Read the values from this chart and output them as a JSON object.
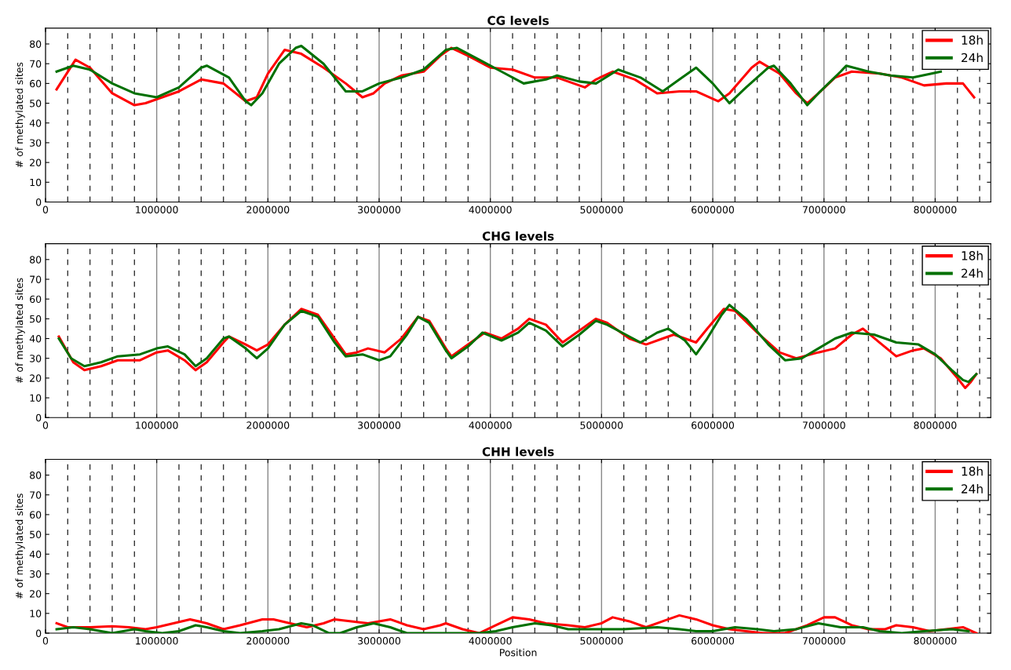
{
  "chart_data": [
    {
      "type": "line",
      "title": "CG levels",
      "ylabel": "# of methylated sites",
      "xlim": [
        0,
        8500000
      ],
      "ylim": [
        0,
        88
      ],
      "xticks": [
        0,
        1000000,
        2000000,
        3000000,
        4000000,
        5000000,
        6000000,
        7000000,
        8000000
      ],
      "yticks": [
        0,
        10,
        20,
        30,
        40,
        50,
        60,
        70,
        80
      ],
      "grid": "x",
      "legend": "top right",
      "line_style": "solid",
      "ref_lines": [
        {
          "axis": "x",
          "value": 200000,
          "line_style": "dashed"
        },
        {
          "axis": "x",
          "value": 400000,
          "line_style": "dashed"
        },
        {
          "axis": "x",
          "value": 600000,
          "line_style": "dashed"
        },
        {
          "axis": "x",
          "value": 800000,
          "line_style": "dashed"
        },
        {
          "axis": "x",
          "value": 1200000,
          "line_style": "dashed"
        },
        {
          "axis": "x",
          "value": 1400000,
          "line_style": "dashed"
        },
        {
          "axis": "x",
          "value": 1600000,
          "line_style": "dashed"
        },
        {
          "axis": "x",
          "value": 1800000,
          "line_style": "dashed"
        },
        {
          "axis": "x",
          "value": 2200000,
          "line_style": "dashed"
        },
        {
          "axis": "x",
          "value": 2400000,
          "line_style": "dashed"
        },
        {
          "axis": "x",
          "value": 2600000,
          "line_style": "dashed"
        },
        {
          "axis": "x",
          "value": 2800000,
          "line_style": "dashed"
        },
        {
          "axis": "x",
          "value": 3200000,
          "line_style": "dashed"
        },
        {
          "axis": "x",
          "value": 3400000,
          "line_style": "dashed"
        },
        {
          "axis": "x",
          "value": 3600000,
          "line_style": "dashed"
        },
        {
          "axis": "x",
          "value": 3800000,
          "line_style": "dashed"
        },
        {
          "axis": "x",
          "value": 4200000,
          "line_style": "dashed"
        },
        {
          "axis": "x",
          "value": 4400000,
          "line_style": "dashed"
        },
        {
          "axis": "x",
          "value": 4600000,
          "line_style": "dashed"
        },
        {
          "axis": "x",
          "value": 4800000,
          "line_style": "dashed"
        },
        {
          "axis": "x",
          "value": 5200000,
          "line_style": "dashed"
        },
        {
          "axis": "x",
          "value": 5400000,
          "line_style": "dashed"
        },
        {
          "axis": "x",
          "value": 5600000,
          "line_style": "dashed"
        },
        {
          "axis": "x",
          "value": 5800000,
          "line_style": "dashed"
        },
        {
          "axis": "x",
          "value": 6200000,
          "line_style": "dashed"
        },
        {
          "axis": "x",
          "value": 6400000,
          "line_style": "dashed"
        },
        {
          "axis": "x",
          "value": 6600000,
          "line_style": "dashed"
        },
        {
          "axis": "x",
          "value": 6800000,
          "line_style": "dashed"
        },
        {
          "axis": "x",
          "value": 7200000,
          "line_style": "dashed"
        },
        {
          "axis": "x",
          "value": 7400000,
          "line_style": "dashed"
        },
        {
          "axis": "x",
          "value": 7600000,
          "line_style": "dashed"
        },
        {
          "axis": "x",
          "value": 7800000,
          "line_style": "dashed"
        },
        {
          "axis": "x",
          "value": 8200000,
          "line_style": "dashed"
        },
        {
          "axis": "x",
          "value": 8400000,
          "line_style": "dashed"
        }
      ],
      "series": [
        {
          "name": "18h",
          "color": "#ff0000",
          "x": [
            100000,
            270000,
            400000,
            600000,
            800000,
            900000,
            1000000,
            1200000,
            1400000,
            1600000,
            1800000,
            1900000,
            2000000,
            2150000,
            2300000,
            2500000,
            2700000,
            2850000,
            2950000,
            3050000,
            3200000,
            3400000,
            3550000,
            3650000,
            3800000,
            4000000,
            4200000,
            4400000,
            4600000,
            4850000,
            4950000,
            5100000,
            5300000,
            5500000,
            5700000,
            5850000,
            6050000,
            6150000,
            6350000,
            6420000,
            6600000,
            6750000,
            6850000,
            6950000,
            7100000,
            7250000,
            7500000,
            7700000,
            7900000,
            8100000,
            8250000,
            8350000
          ],
          "values": [
            57,
            72,
            68,
            55,
            49,
            50,
            52,
            56,
            62,
            60,
            51,
            53,
            65,
            77,
            75,
            68,
            60,
            53,
            55,
            60,
            64,
            66,
            74,
            78,
            74,
            68,
            67,
            63,
            63,
            58,
            62,
            66,
            62,
            55,
            56,
            56,
            51,
            55,
            68,
            71,
            65,
            55,
            50,
            55,
            63,
            66,
            65,
            63,
            59,
            60,
            60,
            53
          ]
        },
        {
          "name": "24h",
          "color": "#007000",
          "x": [
            100000,
            250000,
            400000,
            600000,
            800000,
            1000000,
            1200000,
            1400000,
            1450000,
            1650000,
            1800000,
            1850000,
            1950000,
            2100000,
            2250000,
            2300000,
            2500000,
            2700000,
            2850000,
            3000000,
            3200000,
            3400000,
            3600000,
            3700000,
            3900000,
            4100000,
            4300000,
            4500000,
            4600000,
            4800000,
            4950000,
            5150000,
            5350000,
            5550000,
            5700000,
            5850000,
            6000000,
            6150000,
            6300000,
            6500000,
            6550000,
            6700000,
            6850000,
            6950000,
            7150000,
            7200000,
            7400000,
            7600000,
            7800000,
            8050000
          ],
          "values": [
            66,
            69,
            67,
            60,
            55,
            53,
            58,
            68,
            69,
            63,
            51,
            49,
            55,
            70,
            78,
            79,
            70,
            56,
            56,
            60,
            63,
            67,
            77,
            78,
            72,
            66,
            60,
            62,
            64,
            61,
            60,
            67,
            63,
            56,
            62,
            68,
            60,
            50,
            58,
            68,
            69,
            60,
            49,
            55,
            66,
            69,
            66,
            64,
            63,
            66
          ]
        }
      ]
    },
    {
      "type": "line",
      "title": "CHG levels",
      "ylabel": "# of methylated sites",
      "xlim": [
        0,
        8500000
      ],
      "ylim": [
        0,
        88
      ],
      "xticks": [
        0,
        1000000,
        2000000,
        3000000,
        4000000,
        5000000,
        6000000,
        7000000,
        8000000
      ],
      "yticks": [
        0,
        10,
        20,
        30,
        40,
        50,
        60,
        70,
        80
      ],
      "grid": "x",
      "legend": "top right",
      "line_style": "solid",
      "ref_lines": [
        {
          "axis": "x",
          "value": 200000,
          "line_style": "dashed"
        },
        {
          "axis": "x",
          "value": 400000,
          "line_style": "dashed"
        },
        {
          "axis": "x",
          "value": 600000,
          "line_style": "dashed"
        },
        {
          "axis": "x",
          "value": 800000,
          "line_style": "dashed"
        },
        {
          "axis": "x",
          "value": 1200000,
          "line_style": "dashed"
        },
        {
          "axis": "x",
          "value": 1400000,
          "line_style": "dashed"
        },
        {
          "axis": "x",
          "value": 1600000,
          "line_style": "dashed"
        },
        {
          "axis": "x",
          "value": 1800000,
          "line_style": "dashed"
        },
        {
          "axis": "x",
          "value": 2200000,
          "line_style": "dashed"
        },
        {
          "axis": "x",
          "value": 2400000,
          "line_style": "dashed"
        },
        {
          "axis": "x",
          "value": 2600000,
          "line_style": "dashed"
        },
        {
          "axis": "x",
          "value": 2800000,
          "line_style": "dashed"
        },
        {
          "axis": "x",
          "value": 3200000,
          "line_style": "dashed"
        },
        {
          "axis": "x",
          "value": 3400000,
          "line_style": "dashed"
        },
        {
          "axis": "x",
          "value": 3600000,
          "line_style": "dashed"
        },
        {
          "axis": "x",
          "value": 3800000,
          "line_style": "dashed"
        },
        {
          "axis": "x",
          "value": 4200000,
          "line_style": "dashed"
        },
        {
          "axis": "x",
          "value": 4400000,
          "line_style": "dashed"
        },
        {
          "axis": "x",
          "value": 4600000,
          "line_style": "dashed"
        },
        {
          "axis": "x",
          "value": 4800000,
          "line_style": "dashed"
        },
        {
          "axis": "x",
          "value": 5200000,
          "line_style": "dashed"
        },
        {
          "axis": "x",
          "value": 5400000,
          "line_style": "dashed"
        },
        {
          "axis": "x",
          "value": 5600000,
          "line_style": "dashed"
        },
        {
          "axis": "x",
          "value": 5800000,
          "line_style": "dashed"
        },
        {
          "axis": "x",
          "value": 6200000,
          "line_style": "dashed"
        },
        {
          "axis": "x",
          "value": 6400000,
          "line_style": "dashed"
        },
        {
          "axis": "x",
          "value": 6600000,
          "line_style": "dashed"
        },
        {
          "axis": "x",
          "value": 6800000,
          "line_style": "dashed"
        },
        {
          "axis": "x",
          "value": 7200000,
          "line_style": "dashed"
        },
        {
          "axis": "x",
          "value": 7400000,
          "line_style": "dashed"
        },
        {
          "axis": "x",
          "value": 7600000,
          "line_style": "dashed"
        },
        {
          "axis": "x",
          "value": 7800000,
          "line_style": "dashed"
        },
        {
          "axis": "x",
          "value": 8200000,
          "line_style": "dashed"
        },
        {
          "axis": "x",
          "value": 8400000,
          "line_style": "dashed"
        }
      ],
      "series": [
        {
          "name": "18h",
          "color": "#ff0000",
          "x": [
            120000,
            250000,
            350000,
            500000,
            650000,
            850000,
            1000000,
            1100000,
            1250000,
            1350000,
            1450000,
            1600000,
            1650000,
            1800000,
            1900000,
            2000000,
            2150000,
            2300000,
            2450000,
            2600000,
            2700000,
            2800000,
            2900000,
            3050000,
            3200000,
            3350000,
            3450000,
            3600000,
            3650000,
            3800000,
            3950000,
            4100000,
            4250000,
            4350000,
            4500000,
            4650000,
            4800000,
            4950000,
            5050000,
            5250000,
            5400000,
            5550000,
            5650000,
            5850000,
            5950000,
            6100000,
            6200000,
            6400000,
            6600000,
            6750000,
            6950000,
            7100000,
            7250000,
            7350000,
            7500000,
            7650000,
            7800000,
            7900000,
            8050000,
            8200000,
            8270000,
            8320000,
            8370000
          ],
          "values": [
            41,
            28,
            24,
            26,
            29,
            29,
            33,
            34,
            29,
            24,
            28,
            38,
            41,
            37,
            34,
            37,
            47,
            55,
            52,
            40,
            32,
            33,
            35,
            33,
            40,
            51,
            49,
            35,
            31,
            37,
            43,
            40,
            45,
            50,
            47,
            38,
            44,
            50,
            48,
            40,
            37,
            40,
            42,
            38,
            45,
            55,
            54,
            43,
            33,
            30,
            33,
            35,
            42,
            45,
            38,
            31,
            34,
            35,
            30,
            20,
            15,
            18,
            22
          ]
        },
        {
          "name": "24h",
          "color": "#007000",
          "x": [
            120000,
            230000,
            350000,
            500000,
            650000,
            850000,
            1000000,
            1100000,
            1250000,
            1350000,
            1450000,
            1600000,
            1650000,
            1800000,
            1900000,
            2000000,
            2150000,
            2300000,
            2450000,
            2600000,
            2700000,
            2850000,
            3000000,
            3100000,
            3250000,
            3350000,
            3450000,
            3600000,
            3650000,
            3800000,
            3930000,
            4100000,
            4250000,
            4350000,
            4500000,
            4650000,
            4800000,
            4950000,
            5050000,
            5250000,
            5350000,
            5500000,
            5600000,
            5750000,
            5850000,
            5950000,
            6080000,
            6150000,
            6300000,
            6500000,
            6650000,
            6800000,
            6950000,
            7100000,
            7250000,
            7450000,
            7650000,
            7850000,
            8000000,
            8150000,
            8250000,
            8300000,
            8370000
          ],
          "values": [
            40,
            30,
            26,
            28,
            31,
            32,
            35,
            36,
            32,
            26,
            30,
            40,
            41,
            35,
            30,
            35,
            47,
            54,
            51,
            38,
            31,
            32,
            29,
            31,
            42,
            51,
            48,
            34,
            30,
            36,
            43,
            39,
            43,
            48,
            44,
            36,
            42,
            49,
            47,
            41,
            38,
            43,
            45,
            39,
            32,
            40,
            52,
            57,
            50,
            37,
            29,
            30,
            35,
            40,
            43,
            42,
            38,
            37,
            32,
            24,
            19,
            18,
            22
          ]
        }
      ]
    },
    {
      "type": "line",
      "title": "CHH levels",
      "xlabel": "Position",
      "ylabel": "# of methylated sites",
      "xlim": [
        0,
        8500000
      ],
      "ylim": [
        0,
        88
      ],
      "xticks": [
        0,
        1000000,
        2000000,
        3000000,
        4000000,
        5000000,
        6000000,
        7000000,
        8000000
      ],
      "yticks": [
        0,
        10,
        20,
        30,
        40,
        50,
        60,
        70,
        80
      ],
      "grid": "x",
      "legend": "top right",
      "line_style": "solid",
      "ref_lines": [
        {
          "axis": "x",
          "value": 200000,
          "line_style": "dashed"
        },
        {
          "axis": "x",
          "value": 400000,
          "line_style": "dashed"
        },
        {
          "axis": "x",
          "value": 600000,
          "line_style": "dashed"
        },
        {
          "axis": "x",
          "value": 800000,
          "line_style": "dashed"
        },
        {
          "axis": "x",
          "value": 1200000,
          "line_style": "dashed"
        },
        {
          "axis": "x",
          "value": 1400000,
          "line_style": "dashed"
        },
        {
          "axis": "x",
          "value": 1600000,
          "line_style": "dashed"
        },
        {
          "axis": "x",
          "value": 1800000,
          "line_style": "dashed"
        },
        {
          "axis": "x",
          "value": 2200000,
          "line_style": "dashed"
        },
        {
          "axis": "x",
          "value": 2400000,
          "line_style": "dashed"
        },
        {
          "axis": "x",
          "value": 2600000,
          "line_style": "dashed"
        },
        {
          "axis": "x",
          "value": 2800000,
          "line_style": "dashed"
        },
        {
          "axis": "x",
          "value": 3200000,
          "line_style": "dashed"
        },
        {
          "axis": "x",
          "value": 3400000,
          "line_style": "dashed"
        },
        {
          "axis": "x",
          "value": 3600000,
          "line_style": "dashed"
        },
        {
          "axis": "x",
          "value": 3800000,
          "line_style": "dashed"
        },
        {
          "axis": "x",
          "value": 4200000,
          "line_style": "dashed"
        },
        {
          "axis": "x",
          "value": 4400000,
          "line_style": "dashed"
        },
        {
          "axis": "x",
          "value": 4600000,
          "line_style": "dashed"
        },
        {
          "axis": "x",
          "value": 4800000,
          "line_style": "dashed"
        },
        {
          "axis": "x",
          "value": 5200000,
          "line_style": "dashed"
        },
        {
          "axis": "x",
          "value": 5400000,
          "line_style": "dashed"
        },
        {
          "axis": "x",
          "value": 5600000,
          "line_style": "dashed"
        },
        {
          "axis": "x",
          "value": 5800000,
          "line_style": "dashed"
        },
        {
          "axis": "x",
          "value": 6200000,
          "line_style": "dashed"
        },
        {
          "axis": "x",
          "value": 6400000,
          "line_style": "dashed"
        },
        {
          "axis": "x",
          "value": 6600000,
          "line_style": "dashed"
        },
        {
          "axis": "x",
          "value": 6800000,
          "line_style": "dashed"
        },
        {
          "axis": "x",
          "value": 7200000,
          "line_style": "dashed"
        },
        {
          "axis": "x",
          "value": 7400000,
          "line_style": "dashed"
        },
        {
          "axis": "x",
          "value": 7600000,
          "line_style": "dashed"
        },
        {
          "axis": "x",
          "value": 7800000,
          "line_style": "dashed"
        },
        {
          "axis": "x",
          "value": 8200000,
          "line_style": "dashed"
        },
        {
          "axis": "x",
          "value": 8400000,
          "line_style": "dashed"
        }
      ],
      "series": [
        {
          "name": "18h",
          "color": "#ff0000",
          "x": [
            100000,
            200000,
            400000,
            600000,
            750000,
            900000,
            1000000,
            1150000,
            1300000,
            1450000,
            1600000,
            1750000,
            1950000,
            2050000,
            2200000,
            2350000,
            2500000,
            2600000,
            2750000,
            2900000,
            3000000,
            3100000,
            3250000,
            3400000,
            3550000,
            3600000,
            3750000,
            3900000,
            4050000,
            4200000,
            4350000,
            4500000,
            4700000,
            4850000,
            5000000,
            5100000,
            5250000,
            5400000,
            5550000,
            5700000,
            5850000,
            6000000,
            6150000,
            6300000,
            6450000,
            6650000,
            6850000,
            7000000,
            7100000,
            7250000,
            7400000,
            7550000,
            7650000,
            7800000,
            7950000,
            8100000,
            8250000,
            8370000
          ],
          "values": [
            5,
            3,
            3,
            3.5,
            3,
            2,
            3,
            5,
            7,
            5,
            2,
            4,
            7,
            7,
            5,
            3,
            5,
            7,
            6,
            5,
            6,
            7,
            4,
            2,
            4,
            5,
            2,
            0,
            4,
            8,
            7,
            5,
            4,
            3,
            5,
            8,
            6,
            3,
            6,
            9,
            7,
            4,
            2,
            1,
            0,
            0,
            4,
            8,
            8,
            4,
            2,
            2,
            4,
            3,
            1,
            2,
            3,
            0
          ]
        },
        {
          "name": "24h",
          "color": "#007000",
          "x": [
            100000,
            250000,
            400000,
            600000,
            700000,
            800000,
            900000,
            1050000,
            1200000,
            1350000,
            1450000,
            1600000,
            1750000,
            1950000,
            2100000,
            2300000,
            2400000,
            2550000,
            2650000,
            2800000,
            2950000,
            3100000,
            3250000,
            3600000,
            3900000,
            4050000,
            4200000,
            4400000,
            4550000,
            4700000,
            5000000,
            5200000,
            5500000,
            5700000,
            5850000,
            6000000,
            6200000,
            6400000,
            6550000,
            6750000,
            6950000,
            7150000,
            7350000,
            7500000,
            7700000,
            7900000,
            8150000,
            8300000
          ],
          "values": [
            2,
            3,
            2,
            0,
            1,
            2,
            1,
            0,
            1,
            4,
            3,
            1,
            0,
            1,
            2,
            5,
            4,
            0,
            0,
            3,
            5,
            3,
            0,
            0,
            0,
            1,
            3,
            5,
            4,
            2,
            2,
            2,
            3,
            2,
            1,
            1,
            3,
            2,
            1,
            2,
            5,
            3,
            3,
            1,
            0,
            1,
            2,
            1
          ]
        }
      ]
    }
  ]
}
